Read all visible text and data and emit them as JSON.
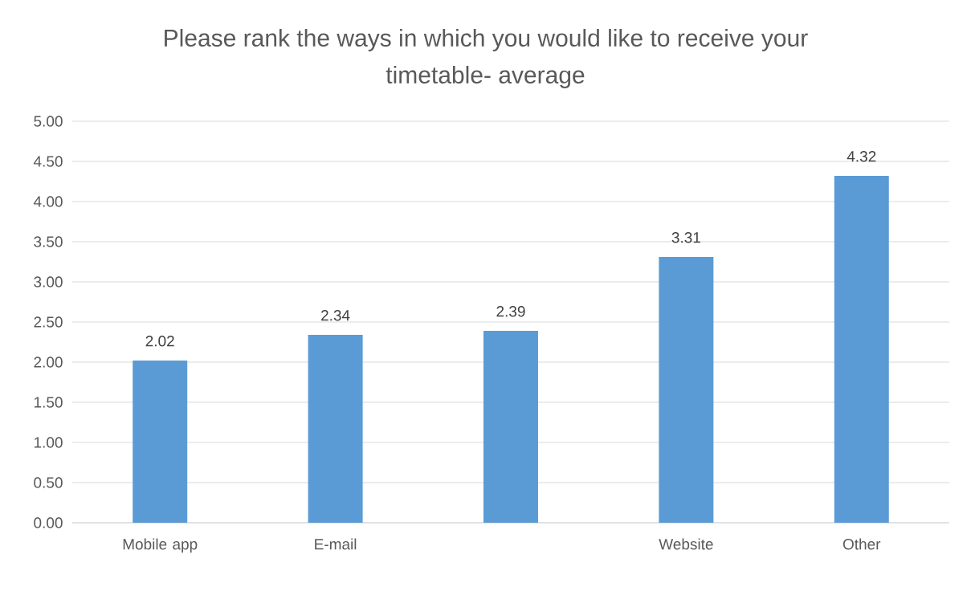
{
  "chart_data": {
    "type": "bar",
    "title": "Please rank the ways in which you would like to receive your timetable- average",
    "categories": [
      "Mobile app",
      "E-mail",
      null,
      "Website",
      "Other"
    ],
    "values": [
      2.02,
      2.34,
      2.39,
      3.31,
      4.32
    ],
    "color": "#5b9bd5",
    "ylim": [
      0,
      5
    ],
    "yticks": [
      {
        "value": 0,
        "label": "0.00"
      },
      {
        "value": 0.5,
        "label": "0.50"
      },
      {
        "value": 1,
        "label": "1.00"
      },
      {
        "value": 1.5,
        "label": "1.50"
      },
      {
        "value": 2,
        "label": "2.00"
      },
      {
        "value": 2.5,
        "label": "2.50"
      },
      {
        "value": 3,
        "label": "3.00"
      },
      {
        "value": 3.5,
        "label": "3.50"
      },
      {
        "value": 4,
        "label": "4.00"
      },
      {
        "value": 4.5,
        "label": "4.50"
      },
      {
        "value": 5,
        "label": "5.00"
      }
    ],
    "grid": "y",
    "data_labels": true
  }
}
